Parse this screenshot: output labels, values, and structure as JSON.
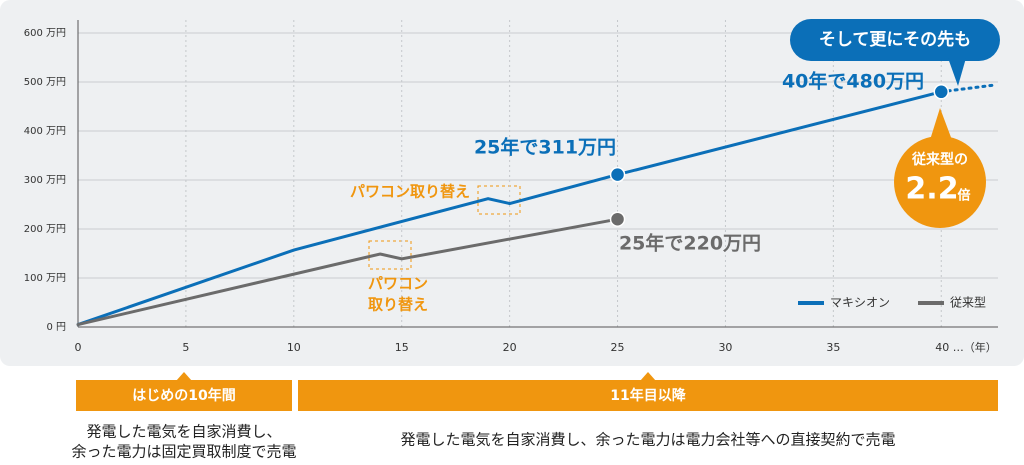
{
  "chart_data": {
    "type": "line",
    "series": [
      {
        "name": "マキシオン",
        "color": "#0b6fb8",
        "x": [
          0,
          10,
          19,
          20,
          25,
          40
        ],
        "values": [
          5,
          157,
          262,
          252,
          311,
          480
        ]
      },
      {
        "name": "従来型",
        "color": "#6b6b6b",
        "x": [
          0,
          14,
          15,
          25
        ],
        "values": [
          5,
          149,
          139,
          220
        ]
      },
      {
        "color": "#0b6fb8",
        "dash": true,
        "x": [
          40,
          42.5
        ],
        "values": [
          480,
          494
        ]
      }
    ],
    "xlim": [
      0,
      43
    ],
    "ylim": [
      0,
      600
    ],
    "xticks": [
      0,
      5,
      10,
      15,
      20,
      25,
      30,
      35,
      {
        "value": 40,
        "label": "40 …（年）"
      }
    ],
    "yticks": [
      {
        "value": 0,
        "label": "0 円"
      },
      {
        "value": 100,
        "label": "100 万円"
      },
      {
        "value": 200,
        "label": "200 万円"
      },
      {
        "value": 300,
        "label": "300 万円"
      },
      {
        "value": 400,
        "label": "400 万円"
      },
      {
        "value": 500,
        "label": "500 万円"
      },
      {
        "value": 600,
        "label": "600 万円"
      }
    ],
    "grid": true,
    "legend": "lower right",
    "annotations": [
      [
        "25年で311万円"
      ],
      [
        "40年で480万円"
      ],
      [
        "25年で220万円"
      ],
      [
        "パワコン取り替え"
      ],
      [
        "パワコン",
        "取り替え"
      ]
    ],
    "callout": "そして更にその先も",
    "badge": {
      "top": "従来型の",
      "value": 2.2,
      "unit": "倍"
    },
    "periods": [
      {
        "label": "はじめの10年間",
        "note": [
          "発電した電気を自家消費し、",
          "余った電力は固定買取制度で売電"
        ]
      },
      {
        "label": "11年目以降",
        "note": [
          "発電した電気を自家消費し、余った電力は電力会社等への直接契約で売電"
        ]
      }
    ]
  }
}
